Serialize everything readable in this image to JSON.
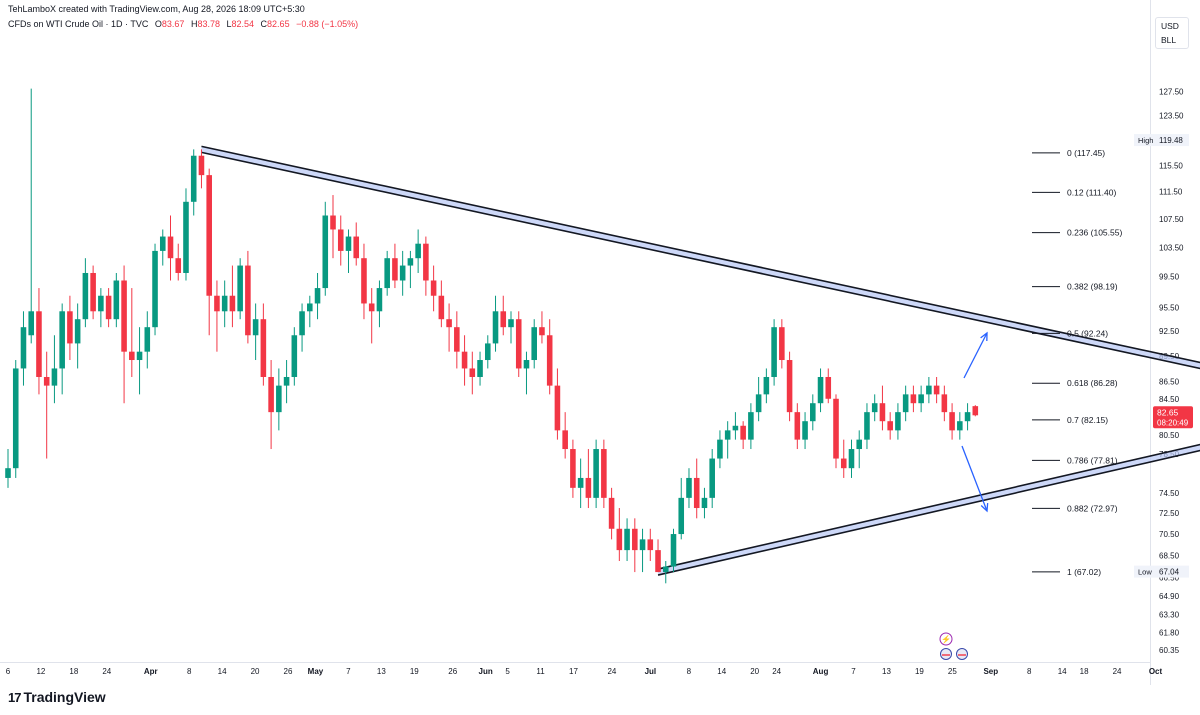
{
  "header": {
    "attribution": "TehLamboX created with TradingView.com, Aug 28, 2026 18:09 UTC+5:30",
    "symbol": "CFDs on WTI Crude Oil · 1D · TVC",
    "open_label": "O",
    "open": "83.67",
    "high_label": "H",
    "high": "83.78",
    "low_label": "L",
    "low": "82.54",
    "close_label": "C",
    "close": "82.65",
    "change": "−0.88 (−1.05%)"
  },
  "currency": {
    "code": "USD",
    "unit": "BLL"
  },
  "footer": {
    "logo_mark": "17",
    "brand": "TradingView"
  },
  "colors": {
    "up": "#089981",
    "down": "#f23645",
    "line": "#131722",
    "band": "#b8c8f5",
    "arrow": "#2962ff",
    "text": "#131722"
  },
  "chart_data": {
    "type": "candlestick",
    "y_scale": "log",
    "y_range": [
      59.4,
      133.0
    ],
    "x_range_days": [
      0,
      208
    ],
    "y_ticks": [
      "127.50",
      "123.50",
      "115.50",
      "111.50",
      "107.50",
      "103.50",
      "99.50",
      "95.50",
      "92.50",
      "89.50",
      "86.50",
      "84.50",
      "80.50",
      "78.50",
      "74.50",
      "72.50",
      "70.50",
      "68.50",
      "66.50",
      "64.90",
      "63.30",
      "61.80",
      "60.35"
    ],
    "x_ticks": [
      {
        "label": "6",
        "day": 0
      },
      {
        "label": "12",
        "day": 6
      },
      {
        "label": "18",
        "day": 12
      },
      {
        "label": "24",
        "day": 18
      },
      {
        "label": "Apr",
        "day": 26,
        "bold": true
      },
      {
        "label": "8",
        "day": 33
      },
      {
        "label": "14",
        "day": 39
      },
      {
        "label": "20",
        "day": 45
      },
      {
        "label": "26",
        "day": 51
      },
      {
        "label": "May",
        "day": 56,
        "bold": true
      },
      {
        "label": "7",
        "day": 62
      },
      {
        "label": "13",
        "day": 68
      },
      {
        "label": "19",
        "day": 74
      },
      {
        "label": "26",
        "day": 81
      },
      {
        "label": "Jun",
        "day": 87,
        "bold": true
      },
      {
        "label": "5",
        "day": 91
      },
      {
        "label": "11",
        "day": 97
      },
      {
        "label": "17",
        "day": 103
      },
      {
        "label": "24",
        "day": 110
      },
      {
        "label": "Jul",
        "day": 117,
        "bold": true
      },
      {
        "label": "8",
        "day": 124
      },
      {
        "label": "14",
        "day": 130
      },
      {
        "label": "20",
        "day": 136
      },
      {
        "label": "24",
        "day": 140
      },
      {
        "label": "Aug",
        "day": 148,
        "bold": true
      },
      {
        "label": "7",
        "day": 154
      },
      {
        "label": "13",
        "day": 160
      },
      {
        "label": "19",
        "day": 166
      },
      {
        "label": "25",
        "day": 172
      },
      {
        "label": "Sep",
        "day": 179,
        "bold": true
      },
      {
        "label": "8",
        "day": 186
      },
      {
        "label": "14",
        "day": 192
      },
      {
        "label": "18",
        "day": 196
      },
      {
        "label": "24",
        "day": 202
      },
      {
        "label": "Oct",
        "day": 209,
        "bold": true
      }
    ],
    "candles": [
      [
        0,
        76,
        79,
        75,
        77
      ],
      [
        1,
        77,
        89,
        76,
        88
      ],
      [
        2,
        88,
        95,
        86,
        93
      ],
      [
        3,
        92,
        128,
        91,
        95
      ],
      [
        4,
        95,
        98,
        85,
        87
      ],
      [
        5,
        87,
        90,
        78,
        86
      ],
      [
        6,
        86,
        92,
        84,
        88
      ],
      [
        7,
        88,
        96,
        85,
        95
      ],
      [
        8,
        95,
        97,
        89,
        91
      ],
      [
        9,
        91,
        96,
        88,
        94
      ],
      [
        10,
        94,
        102,
        93,
        100
      ],
      [
        11,
        100,
        101,
        94,
        95
      ],
      [
        12,
        95,
        98,
        93,
        97
      ],
      [
        13,
        97,
        98,
        93,
        94
      ],
      [
        14,
        94,
        100,
        93,
        99
      ],
      [
        15,
        99,
        101,
        84,
        90
      ],
      [
        16,
        90,
        98,
        87,
        89
      ],
      [
        17,
        89,
        93,
        85,
        90
      ],
      [
        18,
        90,
        95,
        88,
        93
      ],
      [
        19,
        93,
        104,
        92,
        103
      ],
      [
        20,
        103,
        106,
        101,
        105
      ],
      [
        21,
        105,
        108,
        99,
        102
      ],
      [
        22,
        102,
        104,
        99,
        100
      ],
      [
        23,
        100,
        112,
        99,
        110
      ],
      [
        24,
        110,
        118,
        108,
        117
      ],
      [
        25,
        117,
        118,
        112,
        114
      ],
      [
        26,
        114,
        115,
        92,
        97
      ],
      [
        27,
        97,
        99,
        90,
        95
      ],
      [
        28,
        95,
        99,
        93,
        97
      ],
      [
        29,
        97,
        101,
        93,
        95
      ],
      [
        30,
        95,
        102,
        94,
        101
      ],
      [
        31,
        101,
        103,
        91,
        92
      ],
      [
        32,
        92,
        96,
        89,
        94
      ],
      [
        33,
        94,
        96,
        86,
        87
      ],
      [
        34,
        87,
        89,
        79,
        83
      ],
      [
        35,
        83,
        88,
        81,
        86
      ],
      [
        36,
        86,
        89,
        84,
        87
      ],
      [
        37,
        87,
        93,
        86,
        92
      ],
      [
        38,
        92,
        96,
        90,
        95
      ],
      [
        39,
        95,
        97,
        93,
        96
      ],
      [
        40,
        96,
        100,
        94,
        98
      ],
      [
        41,
        98,
        110,
        97,
        108
      ],
      [
        42,
        108,
        111,
        102,
        106
      ],
      [
        43,
        106,
        108,
        101,
        103
      ],
      [
        44,
        103,
        106,
        100,
        105
      ],
      [
        45,
        105,
        107,
        101,
        102
      ],
      [
        46,
        102,
        104,
        94,
        96
      ],
      [
        47,
        96,
        98,
        91,
        95
      ],
      [
        48,
        95,
        99,
        93,
        98
      ],
      [
        49,
        98,
        103,
        97,
        102
      ],
      [
        50,
        102,
        104,
        98,
        99
      ],
      [
        51,
        99,
        103,
        97,
        101
      ],
      [
        52,
        101,
        103,
        98,
        102
      ],
      [
        53,
        102,
        106,
        100,
        104
      ],
      [
        54,
        104,
        105,
        97,
        99
      ],
      [
        55,
        99,
        101,
        95,
        97
      ],
      [
        56,
        97,
        99,
        93,
        94
      ],
      [
        57,
        94,
        96,
        90,
        93
      ],
      [
        58,
        93,
        95,
        88,
        90
      ],
      [
        59,
        90,
        92,
        86,
        88
      ],
      [
        60,
        88,
        90,
        85,
        87
      ],
      [
        61,
        87,
        90,
        86,
        89
      ],
      [
        62,
        89,
        92,
        88,
        91
      ],
      [
        63,
        91,
        97,
        90,
        95
      ],
      [
        64,
        95,
        97,
        92,
        93
      ],
      [
        65,
        93,
        95,
        91,
        94
      ],
      [
        66,
        94,
        95,
        87,
        88
      ],
      [
        67,
        88,
        90,
        85,
        89
      ],
      [
        68,
        89,
        94,
        88,
        93
      ],
      [
        69,
        93,
        95,
        91,
        92
      ],
      [
        70,
        92,
        94,
        85,
        86
      ],
      [
        71,
        86,
        88,
        80,
        81
      ],
      [
        72,
        81,
        83,
        78,
        79
      ],
      [
        73,
        79,
        80,
        74,
        75
      ],
      [
        74,
        75,
        78,
        73,
        76
      ],
      [
        75,
        76,
        79,
        73,
        74
      ],
      [
        76,
        74,
        80,
        73,
        79
      ],
      [
        77,
        79,
        80,
        73,
        74
      ],
      [
        78,
        74,
        75,
        70,
        71
      ],
      [
        79,
        71,
        73,
        68,
        69
      ],
      [
        80,
        69,
        72,
        68,
        71
      ],
      [
        81,
        71,
        72,
        67,
        69
      ],
      [
        82,
        69,
        71,
        67,
        70
      ],
      [
        83,
        70,
        71,
        68,
        69
      ],
      [
        84,
        69,
        70,
        67,
        67
      ],
      [
        85,
        67,
        68,
        66,
        67.5
      ],
      [
        86,
        67.5,
        71,
        67,
        70.5
      ],
      [
        87,
        70.5,
        76,
        70,
        74
      ],
      [
        88,
        74,
        77,
        73,
        76
      ],
      [
        89,
        76,
        78,
        72,
        73
      ],
      [
        90,
        73,
        75,
        72,
        74
      ],
      [
        91,
        74,
        79,
        73,
        78
      ],
      [
        92,
        78,
        81,
        77,
        80
      ],
      [
        93,
        80,
        82,
        78,
        81
      ],
      [
        94,
        81,
        83,
        80,
        81.5
      ],
      [
        95,
        81.5,
        82,
        79,
        80
      ],
      [
        96,
        80,
        84,
        79,
        83
      ],
      [
        97,
        83,
        87,
        82,
        85
      ],
      [
        98,
        85,
        88,
        84,
        87
      ],
      [
        99,
        87,
        94,
        86,
        93
      ],
      [
        100,
        93,
        94,
        88,
        89
      ],
      [
        101,
        89,
        90,
        82,
        83
      ],
      [
        102,
        83,
        84,
        79,
        80
      ],
      [
        103,
        80,
        83,
        79,
        82
      ],
      [
        104,
        82,
        85,
        81,
        84
      ],
      [
        105,
        84,
        88,
        83,
        87
      ],
      [
        106,
        87,
        88,
        84,
        84.5
      ],
      [
        107,
        84.5,
        85,
        77,
        78
      ],
      [
        108,
        78,
        80,
        76,
        77
      ],
      [
        109,
        77,
        80,
        76,
        79
      ],
      [
        110,
        79,
        81,
        77,
        80
      ],
      [
        111,
        80,
        84,
        79,
        83
      ],
      [
        112,
        83,
        85,
        82,
        84
      ],
      [
        113,
        84,
        86,
        81,
        82
      ],
      [
        114,
        82,
        83,
        80,
        81
      ],
      [
        115,
        81,
        84,
        80,
        83
      ],
      [
        116,
        83,
        86,
        82,
        85
      ],
      [
        117,
        85,
        86,
        83,
        84
      ],
      [
        118,
        84,
        86,
        83,
        85
      ],
      [
        119,
        85,
        87,
        84,
        86
      ],
      [
        120,
        86,
        87,
        84,
        85
      ],
      [
        121,
        85,
        86,
        82,
        83
      ],
      [
        122,
        83,
        84,
        80,
        81
      ],
      [
        123,
        81,
        83,
        80,
        82
      ],
      [
        124,
        82,
        84,
        81,
        83
      ],
      [
        125,
        83.67,
        83.78,
        82.54,
        82.65
      ]
    ],
    "pattern": {
      "name": "symmetrical triangle",
      "upper_line": [
        [
          25,
          118
        ],
        [
          175,
          84.3
        ]
      ],
      "lower_line": [
        [
          84,
          67
        ],
        [
          175,
          83.2
        ]
      ]
    },
    "fib_levels": [
      {
        "label": "0 (117.45)",
        "value": 117.45
      },
      {
        "label": "0.12 (111.40)",
        "value": 111.4
      },
      {
        "label": "0.236 (105.55)",
        "value": 105.55
      },
      {
        "label": "0.382 (98.19)",
        "value": 98.19
      },
      {
        "label": "0.5 (92.24)",
        "value": 92.24
      },
      {
        "label": "0.618 (86.28)",
        "value": 86.28
      },
      {
        "label": "0.7 (82.15)",
        "value": 82.15
      },
      {
        "label": "0.786 (77.81)",
        "value": 77.81
      },
      {
        "label": "0.882 (72.97)",
        "value": 72.97
      },
      {
        "label": "1 (67.02)",
        "value": 67.02
      }
    ],
    "markers": [
      {
        "label": "High",
        "value": 119.48,
        "price": "119.48"
      },
      {
        "label": "Low",
        "value": 67.04,
        "price": "67.04"
      }
    ],
    "last_price": {
      "value": 82.65,
      "price": "82.65",
      "countdown": "08:20:49"
    }
  }
}
